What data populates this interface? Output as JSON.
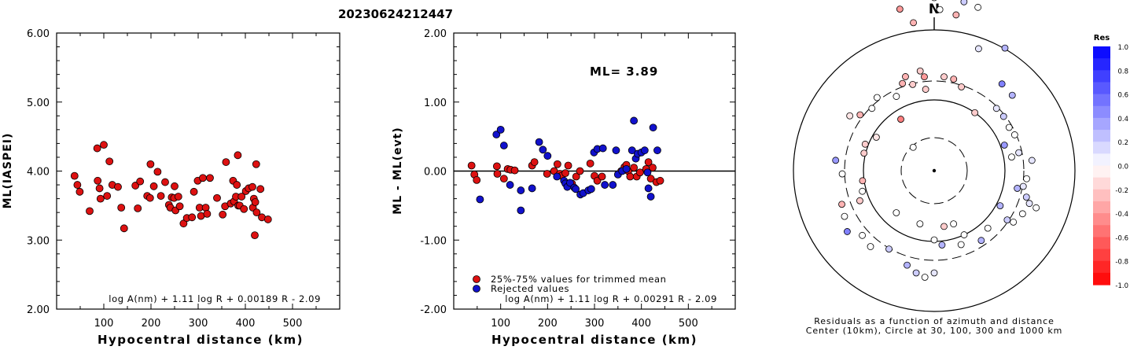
{
  "title": "20230624212447",
  "chart_data": [
    {
      "type": "scatter",
      "id": "ml-vs-distance",
      "xlabel": "Hypocentral distance (km)",
      "ylabel": "ML(IASPEI)",
      "xlim": [
        0,
        600
      ],
      "ylim": [
        2.0,
        6.0
      ],
      "x_ticks": [
        "100",
        "200",
        "300",
        "400",
        "500"
      ],
      "y_ticks": [
        "2.00",
        "3.00",
        "4.00",
        "5.00",
        "6.00"
      ],
      "formula": "log A(nm) + 1.11 log R + 0.00189 R - 2.09",
      "point_color": "#dd1111",
      "points": [
        [
          38,
          3.93
        ],
        [
          44,
          3.8
        ],
        [
          49,
          3.7
        ],
        [
          70,
          3.42
        ],
        [
          86,
          4.33
        ],
        [
          87,
          3.86
        ],
        [
          91,
          3.75
        ],
        [
          93,
          3.6
        ],
        [
          100,
          4.38
        ],
        [
          107,
          3.64
        ],
        [
          112,
          4.14
        ],
        [
          118,
          3.8
        ],
        [
          130,
          3.77
        ],
        [
          137,
          3.47
        ],
        [
          143,
          3.17
        ],
        [
          167,
          3.79
        ],
        [
          172,
          3.46
        ],
        [
          177,
          3.85
        ],
        [
          192,
          3.64
        ],
        [
          198,
          3.61
        ],
        [
          199,
          4.1
        ],
        [
          206,
          3.78
        ],
        [
          214,
          3.99
        ],
        [
          221,
          3.64
        ],
        [
          230,
          3.84
        ],
        [
          238,
          3.51
        ],
        [
          241,
          3.47
        ],
        [
          244,
          3.62
        ],
        [
          249,
          3.61
        ],
        [
          250,
          3.78
        ],
        [
          252,
          3.43
        ],
        [
          258,
          3.63
        ],
        [
          261,
          3.49
        ],
        [
          269,
          3.24
        ],
        [
          276,
          3.32
        ],
        [
          287,
          3.33
        ],
        [
          291,
          3.7
        ],
        [
          299,
          3.86
        ],
        [
          303,
          3.47
        ],
        [
          306,
          3.35
        ],
        [
          310,
          3.9
        ],
        [
          316,
          3.47
        ],
        [
          319,
          3.38
        ],
        [
          325,
          3.9
        ],
        [
          340,
          3.61
        ],
        [
          352,
          3.37
        ],
        [
          357,
          3.49
        ],
        [
          359,
          4.13
        ],
        [
          369,
          3.53
        ],
        [
          374,
          3.86
        ],
        [
          376,
          3.56
        ],
        [
          380,
          3.63
        ],
        [
          382,
          3.8
        ],
        [
          384,
          4.23
        ],
        [
          385,
          3.5
        ],
        [
          388,
          3.5
        ],
        [
          392,
          3.63
        ],
        [
          397,
          3.45
        ],
        [
          401,
          3.71
        ],
        [
          407,
          3.75
        ],
        [
          415,
          3.77
        ],
        [
          416,
          3.47
        ],
        [
          418,
          3.6
        ],
        [
          420,
          3.07
        ],
        [
          421,
          3.55
        ],
        [
          423,
          4.1
        ],
        [
          424,
          3.4
        ],
        [
          432,
          3.74
        ],
        [
          435,
          3.33
        ],
        [
          448,
          3.3
        ]
      ]
    },
    {
      "type": "scatter",
      "id": "residual-vs-distance",
      "xlabel": "Hypocentral distance (km)",
      "ylabel": "ML - ML(evt)",
      "xlim": [
        0,
        600
      ],
      "ylim": [
        -2.0,
        2.0
      ],
      "x_ticks": [
        "100",
        "200",
        "300",
        "400",
        "500"
      ],
      "y_ticks": [
        "-2.00",
        "-1.00",
        "0.00",
        "1.00",
        "2.00"
      ],
      "ml_label": "ML= 3.89",
      "formula": "log A(nm) + 1.11 log R + 0.00291 R - 2.09",
      "legend": [
        {
          "label": "25%-75% values for trimmed mean",
          "color": "#dd1111"
        },
        {
          "label": "Rejected values",
          "color": "#1111cc"
        }
      ],
      "series": [
        {
          "name": "25%-75% values for trimmed mean",
          "color": "#dd1111",
          "points": [
            [
              38,
              0.08
            ],
            [
              44,
              -0.05
            ],
            [
              49,
              -0.13
            ],
            [
              92,
              0.07
            ],
            [
              93,
              -0.04
            ],
            [
              107,
              -0.11
            ],
            [
              115,
              0.03
            ],
            [
              121,
              0.02
            ],
            [
              130,
              0.01
            ],
            [
              167,
              0.08
            ],
            [
              172,
              0.13
            ],
            [
              199,
              -0.04
            ],
            [
              214,
              0.0
            ],
            [
              221,
              0.1
            ],
            [
              226,
              -0.04
            ],
            [
              230,
              -0.07
            ],
            [
              238,
              -0.03
            ],
            [
              244,
              0.08
            ],
            [
              252,
              -0.18
            ],
            [
              261,
              -0.08
            ],
            [
              269,
              0.0
            ],
            [
              291,
              0.11
            ],
            [
              300,
              -0.07
            ],
            [
              306,
              -0.14
            ],
            [
              316,
              -0.08
            ],
            [
              357,
              0.0
            ],
            [
              364,
              0.06
            ],
            [
              368,
              0.09
            ],
            [
              372,
              0.0
            ],
            [
              376,
              -0.08
            ],
            [
              384,
              0.05
            ],
            [
              390,
              -0.08
            ],
            [
              397,
              -0.02
            ],
            [
              410,
              0.03
            ],
            [
              415,
              0.13
            ],
            [
              420,
              -0.11
            ],
            [
              424,
              0.05
            ],
            [
              432,
              -0.16
            ],
            [
              440,
              -0.14
            ]
          ]
        },
        {
          "name": "Rejected values",
          "color": "#1111cc",
          "points": [
            [
              56,
              -0.41
            ],
            [
              91,
              0.53
            ],
            [
              100,
              0.6
            ],
            [
              107,
              0.37
            ],
            [
              120,
              -0.2
            ],
            [
              143,
              -0.28
            ],
            [
              143,
              -0.57
            ],
            [
              167,
              -0.25
            ],
            [
              182,
              0.42
            ],
            [
              190,
              0.31
            ],
            [
              200,
              0.22
            ],
            [
              220,
              -0.08
            ],
            [
              235,
              -0.14
            ],
            [
              238,
              -0.18
            ],
            [
              242,
              -0.23
            ],
            [
              248,
              -0.17
            ],
            [
              257,
              -0.24
            ],
            [
              260,
              -0.26
            ],
            [
              270,
              -0.34
            ],
            [
              276,
              -0.32
            ],
            [
              287,
              -0.28
            ],
            [
              293,
              -0.26
            ],
            [
              299,
              0.27
            ],
            [
              306,
              0.32
            ],
            [
              318,
              0.33
            ],
            [
              322,
              -0.2
            ],
            [
              339,
              -0.2
            ],
            [
              346,
              0.3
            ],
            [
              350,
              -0.05
            ],
            [
              359,
              0.0
            ],
            [
              368,
              0.03
            ],
            [
              380,
              0.3
            ],
            [
              384,
              0.73
            ],
            [
              388,
              0.18
            ],
            [
              392,
              0.25
            ],
            [
              400,
              0.27
            ],
            [
              407,
              0.3
            ],
            [
              413,
              -0.02
            ],
            [
              415,
              -0.25
            ],
            [
              420,
              -0.37
            ],
            [
              425,
              0.63
            ],
            [
              434,
              0.3
            ]
          ]
        }
      ]
    },
    {
      "type": "polar-scatter",
      "id": "azimuth-residuals",
      "north_label": "N",
      "caption_line1": "Residuals as a function of azimuth and distance",
      "caption_line2": "Center (10km), Circle at 30, 100, 300 and 1000 km",
      "colorbar_title": "Res",
      "colorbar_ticks": [
        "1.0",
        "0.8",
        "0.6",
        "0.4",
        "0.2",
        "0.0",
        "-0.2",
        "-0.4",
        "-0.6",
        "-0.8",
        "-1.0"
      ],
      "points": [
        [
          2,
          205,
          0.0
        ],
        [
          10,
          218,
          0.2
        ],
        [
          15,
          215,
          0.0
        ],
        [
          8,
          200,
          -0.3
        ],
        [
          0,
          220,
          0.0
        ],
        [
          -8,
          190,
          -0.3
        ],
        [
          -12,
          210,
          -0.4
        ],
        [
          20,
          165,
          0.1
        ],
        [
          30,
          180,
          0.3
        ],
        [
          38,
          140,
          0.5
        ],
        [
          46,
          138,
          0.3
        ],
        [
          45,
          112,
          0.1
        ],
        [
          52,
          112,
          0.2
        ],
        [
          60,
          110,
          0.0
        ],
        [
          66,
          112,
          0.0
        ],
        [
          70,
          95,
          0.4
        ],
        [
          78,
          110,
          0.1
        ],
        [
          80,
          100,
          0.0
        ],
        [
          84,
          125,
          0.1
        ],
        [
          95,
          118,
          0.0
        ],
        [
          100,
          115,
          0.1
        ],
        [
          102,
          108,
          0.3
        ],
        [
          106,
          122,
          0.2
        ],
        [
          109,
          128,
          0.1
        ],
        [
          110,
          138,
          0.0
        ],
        [
          118,
          95,
          0.3
        ],
        [
          116,
          125,
          0.0
        ],
        [
          123,
          120,
          0.0
        ],
        [
          124,
          112,
          0.2
        ],
        [
          137,
          100,
          0.0
        ],
        [
          146,
          107,
          0.3
        ],
        [
          155,
          90,
          0.0
        ],
        [
          160,
          100,
          0.0
        ],
        [
          170,
          72,
          -0.2
        ],
        [
          174,
          95,
          0.3
        ],
        [
          180,
          130,
          0.1
        ],
        [
          185,
          136,
          0.0
        ],
        [
          190,
          132,
          0.2
        ],
        [
          196,
          125,
          0.3
        ],
        [
          210,
          115,
          0.2
        ],
        [
          220,
          126,
          0.0
        ],
        [
          228,
          123,
          0.0
        ],
        [
          235,
          135,
          0.5
        ],
        [
          243,
          128,
          0.0
        ],
        [
          250,
          125,
          -0.3
        ],
        [
          248,
          102,
          -0.2
        ],
        [
          254,
          95,
          0.0
        ],
        [
          262,
          92,
          -0.3
        ],
        [
          268,
          117,
          0.0
        ],
        [
          276,
          126,
          0.4
        ],
        [
          284,
          92,
          -0.2
        ],
        [
          291,
          94,
          -0.2
        ],
        [
          300,
          85,
          -0.1
        ],
        [
          303,
          128,
          -0.1
        ],
        [
          307,
          118,
          -0.3
        ],
        [
          315,
          112,
          0.0
        ],
        [
          322,
          118,
          0.0
        ],
        [
          333,
          106,
          0.0
        ],
        [
          340,
          118,
          -0.3
        ],
        [
          343,
          125,
          -0.3
        ],
        [
          346,
          113,
          -0.2
        ],
        [
          352,
          128,
          -0.2
        ],
        [
          354,
          120,
          -0.4
        ],
        [
          6,
          120,
          -0.2
        ],
        [
          12,
          119,
          -0.3
        ],
        [
          18,
          112,
          -0.2
        ],
        [
          327,
          78,
          -0.5
        ],
        [
          35,
          90,
          -0.2
        ],
        [
          354,
          104,
          -0.2
        ],
        [
          180,
          88,
          0.0
        ],
        [
          195,
          70,
          0.0
        ],
        [
          222,
          72,
          0.0
        ],
        [
          160,
          72,
          0.0
        ],
        [
          318,
          40,
          0.0
        ]
      ]
    }
  ]
}
